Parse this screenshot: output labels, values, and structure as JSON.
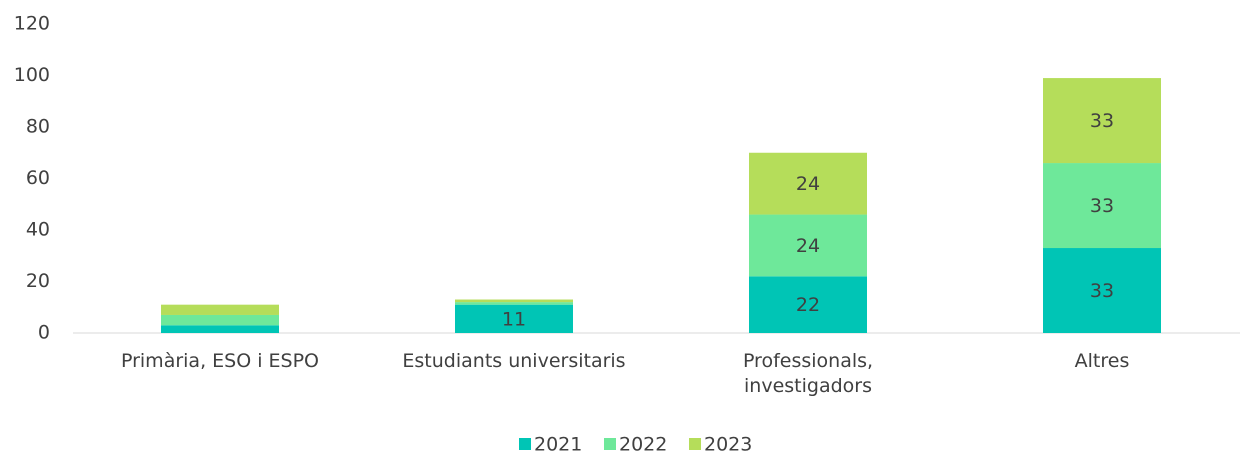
{
  "chart_data": {
    "type": "stacked_bar",
    "categories": [
      "Primària, ESO i ESPO",
      "Estudiants universitaris",
      "Professionals,\ninvestigadors",
      "Altres"
    ],
    "series": [
      {
        "name": "2021",
        "color": "#00c5b5",
        "values": [
          3,
          11,
          22,
          33
        ]
      },
      {
        "name": "2022",
        "color": "#6ee89a",
        "values": [
          4,
          1,
          24,
          33
        ]
      },
      {
        "name": "2023",
        "color": "#b5dd5a",
        "values": [
          4,
          1,
          24,
          33
        ]
      }
    ],
    "ylim": [
      0,
      120
    ],
    "yticks": [
      0,
      20,
      40,
      60,
      80,
      100,
      120
    ],
    "grid": false,
    "legend": "bottom"
  }
}
